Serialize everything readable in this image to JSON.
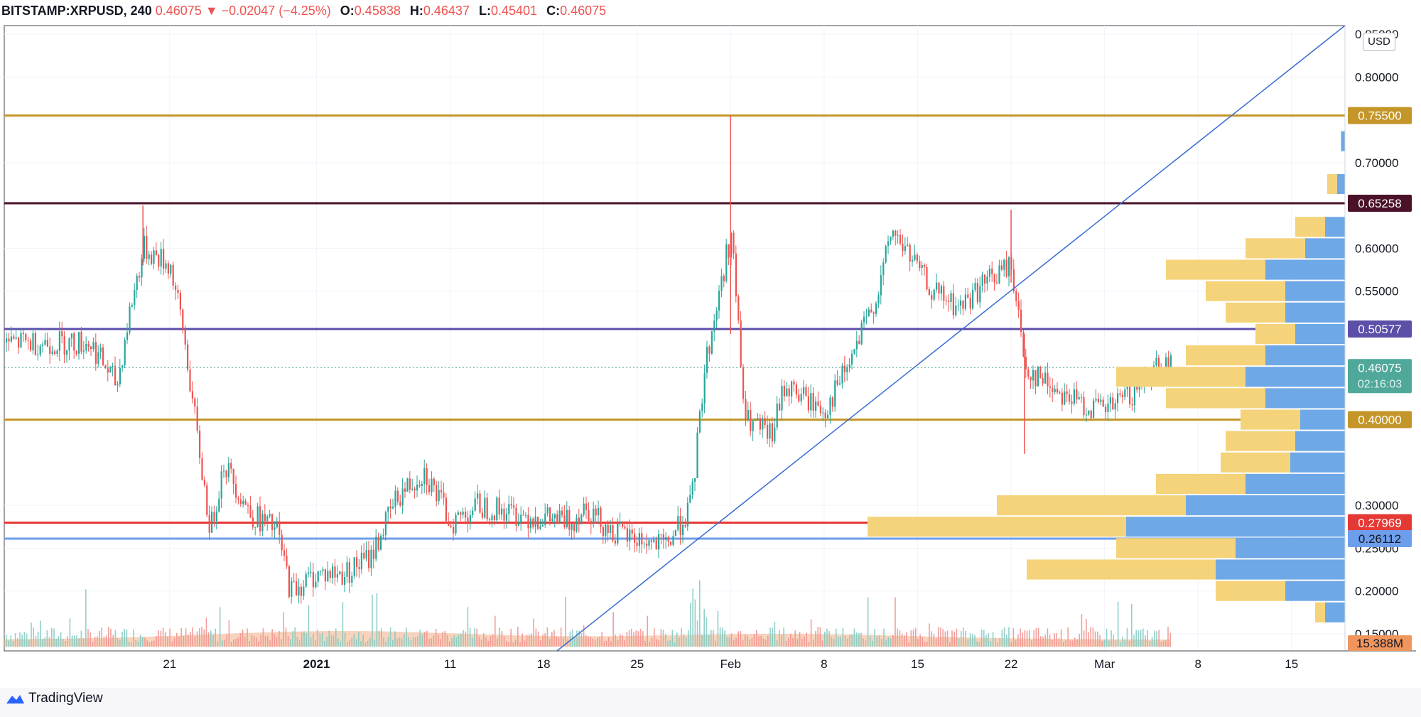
{
  "header": {
    "symbol": "BITSTAMP:XRPUSD, 240",
    "last": "0.46075",
    "arrow": "▼",
    "change": "−0.02047 (−4.25%)",
    "o_label": "O:",
    "o_value": "0.45838",
    "h_label": "H:",
    "h_value": "0.46437",
    "l_label": "L:",
    "l_value": "0.45401",
    "c_label": "C:",
    "c_value": "0.46075"
  },
  "currency": "USD",
  "logo_text": "TradingView",
  "colors": {
    "up": "#26a69a",
    "down": "#ef5350",
    "gold": "#c4962a",
    "maroon": "#4a1128",
    "purple": "#5b4fa8",
    "red": "#e53935",
    "blue_line": "#6d9eeb",
    "trend": "#3a6ccf",
    "vp_up": "#f5d37a",
    "vp_down": "#6fa8e6",
    "current": "#4fa89a",
    "volume_tag": "#f0955c"
  },
  "chart_data": {
    "type": "candlestick",
    "timeframe": "240",
    "x_labels": [
      "21",
      "2021",
      "11",
      "18",
      "25",
      "Feb",
      "8",
      "15",
      "22",
      "Mar",
      "8",
      "15"
    ],
    "y_ticks": [
      "0.85000",
      "0.80000",
      "0.70000",
      "0.60000",
      "0.55000",
      "0.30000",
      "0.25000",
      "0.20000",
      "0.15000"
    ],
    "y_range": [
      0.13,
      0.86
    ],
    "horizontal_levels": [
      {
        "value": 0.755,
        "label": "0.75500",
        "color": "#c4962a"
      },
      {
        "value": 0.65258,
        "label": "0.65258",
        "color": "#4a1128"
      },
      {
        "value": 0.50577,
        "label": "0.50577",
        "color": "#5b4fa8"
      },
      {
        "value": 0.4,
        "label": "0.40000",
        "color": "#c4962a"
      },
      {
        "value": 0.27969,
        "label": "0.27969",
        "color": "#e53935"
      },
      {
        "value": 0.26112,
        "label": "0.26112",
        "color": "#6d9eeb"
      }
    ],
    "current_price": {
      "value": 0.46075,
      "label": "0.46075",
      "countdown": "02:16:03"
    },
    "volume_label": "15.388M",
    "trendline": {
      "from": {
        "date": "Jan 19",
        "price": 0.13
      },
      "to": {
        "date": "Mar 19",
        "price": 0.86
      }
    },
    "price_path": [
      {
        "date": "Dec 15",
        "price": 0.49
      },
      {
        "date": "Dec 17",
        "price": 0.44
      },
      {
        "date": "Dec 18",
        "price": 0.53
      },
      {
        "date": "Dec 19",
        "price": 0.6
      },
      {
        "date": "Dec 21",
        "price": 0.58
      },
      {
        "date": "Dec 22",
        "price": 0.5
      },
      {
        "date": "Dec 23",
        "price": 0.38
      },
      {
        "date": "Dec 24",
        "price": 0.27
      },
      {
        "date": "Dec 25",
        "price": 0.35
      },
      {
        "date": "Dec 27",
        "price": 0.29
      },
      {
        "date": "Dec 29",
        "price": 0.27
      },
      {
        "date": "Dec 30",
        "price": 0.2
      },
      {
        "date": "Jan 1",
        "price": 0.22
      },
      {
        "date": "Jan 3",
        "price": 0.22
      },
      {
        "date": "Jan 5",
        "price": 0.24
      },
      {
        "date": "Jan 7",
        "price": 0.31
      },
      {
        "date": "Jan 9",
        "price": 0.34
      },
      {
        "date": "Jan 11",
        "price": 0.28
      },
      {
        "date": "Jan 13",
        "price": 0.3
      },
      {
        "date": "Jan 16",
        "price": 0.29
      },
      {
        "date": "Jan 20",
        "price": 0.28
      },
      {
        "date": "Jan 21",
        "price": 0.3
      },
      {
        "date": "Jan 23",
        "price": 0.27
      },
      {
        "date": "Jan 27",
        "price": 0.25
      },
      {
        "date": "Jan 29",
        "price": 0.3
      },
      {
        "date": "Jan 30",
        "price": 0.46
      },
      {
        "date": "Feb 1",
        "price": 0.62
      },
      {
        "date": "Feb 2",
        "price": 0.4
      },
      {
        "date": "Feb 4",
        "price": 0.38
      },
      {
        "date": "Feb 5",
        "price": 0.44
      },
      {
        "date": "Feb 8",
        "price": 0.41
      },
      {
        "date": "Feb 10",
        "price": 0.47
      },
      {
        "date": "Feb 12",
        "price": 0.55
      },
      {
        "date": "Feb 13",
        "price": 0.62
      },
      {
        "date": "Feb 14",
        "price": 0.6
      },
      {
        "date": "Feb 16",
        "price": 0.55
      },
      {
        "date": "Feb 18",
        "price": 0.53
      },
      {
        "date": "Feb 20",
        "price": 0.56
      },
      {
        "date": "Feb 22",
        "price": 0.58
      },
      {
        "date": "Feb 23",
        "price": 0.46
      },
      {
        "date": "Feb 25",
        "price": 0.44
      },
      {
        "date": "Feb 27",
        "price": 0.42
      },
      {
        "date": "Mar 1",
        "price": 0.41
      },
      {
        "date": "Mar 3",
        "price": 0.43
      },
      {
        "date": "Mar 5",
        "price": 0.47
      },
      {
        "date": "Mar 6",
        "price": 0.46
      }
    ],
    "volume_profile": [
      {
        "price": 0.725,
        "up": 0.0,
        "down": 0.004
      },
      {
        "price": 0.675,
        "up": 0.01,
        "down": 0.008
      },
      {
        "price": 0.625,
        "up": 0.03,
        "down": 0.02
      },
      {
        "price": 0.6,
        "up": 0.06,
        "down": 0.04
      },
      {
        "price": 0.575,
        "up": 0.1,
        "down": 0.08
      },
      {
        "price": 0.55,
        "up": 0.08,
        "down": 0.06
      },
      {
        "price": 0.525,
        "up": 0.06,
        "down": 0.06
      },
      {
        "price": 0.5,
        "up": 0.04,
        "down": 0.05
      },
      {
        "price": 0.475,
        "up": 0.08,
        "down": 0.08
      },
      {
        "price": 0.45,
        "up": 0.13,
        "down": 0.1
      },
      {
        "price": 0.425,
        "up": 0.1,
        "down": 0.08
      },
      {
        "price": 0.4,
        "up": 0.06,
        "down": 0.045
      },
      {
        "price": 0.375,
        "up": 0.07,
        "down": 0.05
      },
      {
        "price": 0.35,
        "up": 0.07,
        "down": 0.055
      },
      {
        "price": 0.325,
        "up": 0.09,
        "down": 0.1
      },
      {
        "price": 0.3,
        "up": 0.19,
        "down": 0.16
      },
      {
        "price": 0.275,
        "up": 0.26,
        "down": 0.22
      },
      {
        "price": 0.25,
        "up": 0.12,
        "down": 0.11
      },
      {
        "price": 0.225,
        "up": 0.19,
        "down": 0.13
      },
      {
        "price": 0.2,
        "up": 0.07,
        "down": 0.06
      },
      {
        "price": 0.175,
        "up": 0.01,
        "down": 0.02
      }
    ]
  }
}
